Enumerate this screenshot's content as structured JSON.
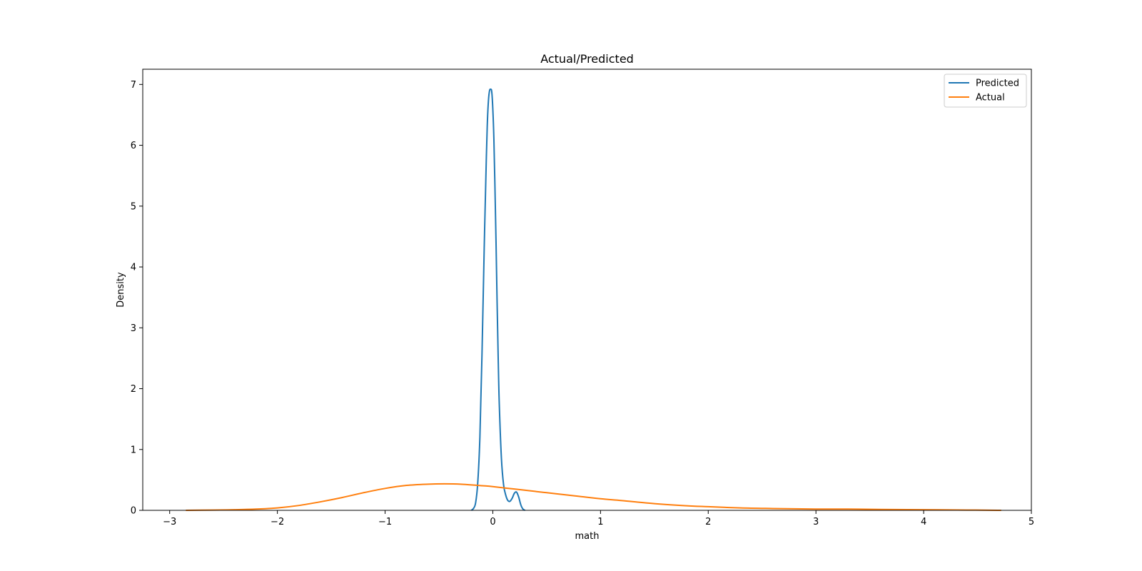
{
  "chart_data": {
    "type": "line",
    "title": "Actual/Predicted",
    "xlabel": "math",
    "ylabel": "Density",
    "xlim": [
      -3.25,
      5.0
    ],
    "ylim": [
      0,
      7.25
    ],
    "xticks": [
      -3,
      -2,
      -1,
      0,
      1,
      2,
      3,
      4,
      5
    ],
    "xtick_labels": [
      "−3",
      "−2",
      "−1",
      "0",
      "1",
      "2",
      "3",
      "4",
      "5"
    ],
    "yticks": [
      0,
      1,
      2,
      3,
      4,
      5,
      6,
      7
    ],
    "ytick_labels": [
      "0",
      "1",
      "2",
      "3",
      "4",
      "5",
      "6",
      "7"
    ],
    "grid": false,
    "legend_position": "top-right",
    "series": [
      {
        "name": "Predicted",
        "color": "#1f77b4",
        "x": [
          -0.2,
          -0.18,
          -0.16,
          -0.14,
          -0.12,
          -0.1,
          -0.08,
          -0.06,
          -0.05,
          -0.04,
          -0.03,
          -0.02,
          -0.01,
          0.0,
          0.01,
          0.02,
          0.03,
          0.04,
          0.05,
          0.06,
          0.08,
          0.1,
          0.12,
          0.14,
          0.16,
          0.18,
          0.2,
          0.22,
          0.24,
          0.26,
          0.28,
          0.3
        ],
        "y": [
          0.0,
          0.03,
          0.12,
          0.45,
          1.2,
          2.6,
          4.3,
          5.8,
          6.4,
          6.75,
          6.9,
          6.92,
          6.88,
          6.6,
          6.1,
          5.3,
          4.4,
          3.4,
          2.5,
          1.75,
          0.85,
          0.42,
          0.25,
          0.16,
          0.15,
          0.2,
          0.28,
          0.3,
          0.22,
          0.09,
          0.02,
          0.0
        ]
      },
      {
        "name": "Actual",
        "color": "#ff7f0e",
        "x": [
          -2.85,
          -2.6,
          -2.4,
          -2.2,
          -2.0,
          -1.8,
          -1.6,
          -1.4,
          -1.2,
          -1.0,
          -0.8,
          -0.6,
          -0.45,
          -0.3,
          -0.1,
          0.0,
          0.2,
          0.4,
          0.6,
          0.8,
          1.0,
          1.2,
          1.5,
          1.8,
          2.0,
          2.3,
          2.6,
          3.0,
          3.3,
          3.6,
          4.0,
          4.4,
          4.72
        ],
        "y": [
          0.0,
          0.005,
          0.01,
          0.02,
          0.04,
          0.08,
          0.14,
          0.21,
          0.29,
          0.36,
          0.41,
          0.43,
          0.435,
          0.43,
          0.405,
          0.39,
          0.35,
          0.31,
          0.27,
          0.23,
          0.19,
          0.16,
          0.11,
          0.075,
          0.06,
          0.04,
          0.03,
          0.02,
          0.02,
          0.015,
          0.01,
          0.005,
          0.0
        ]
      }
    ]
  }
}
